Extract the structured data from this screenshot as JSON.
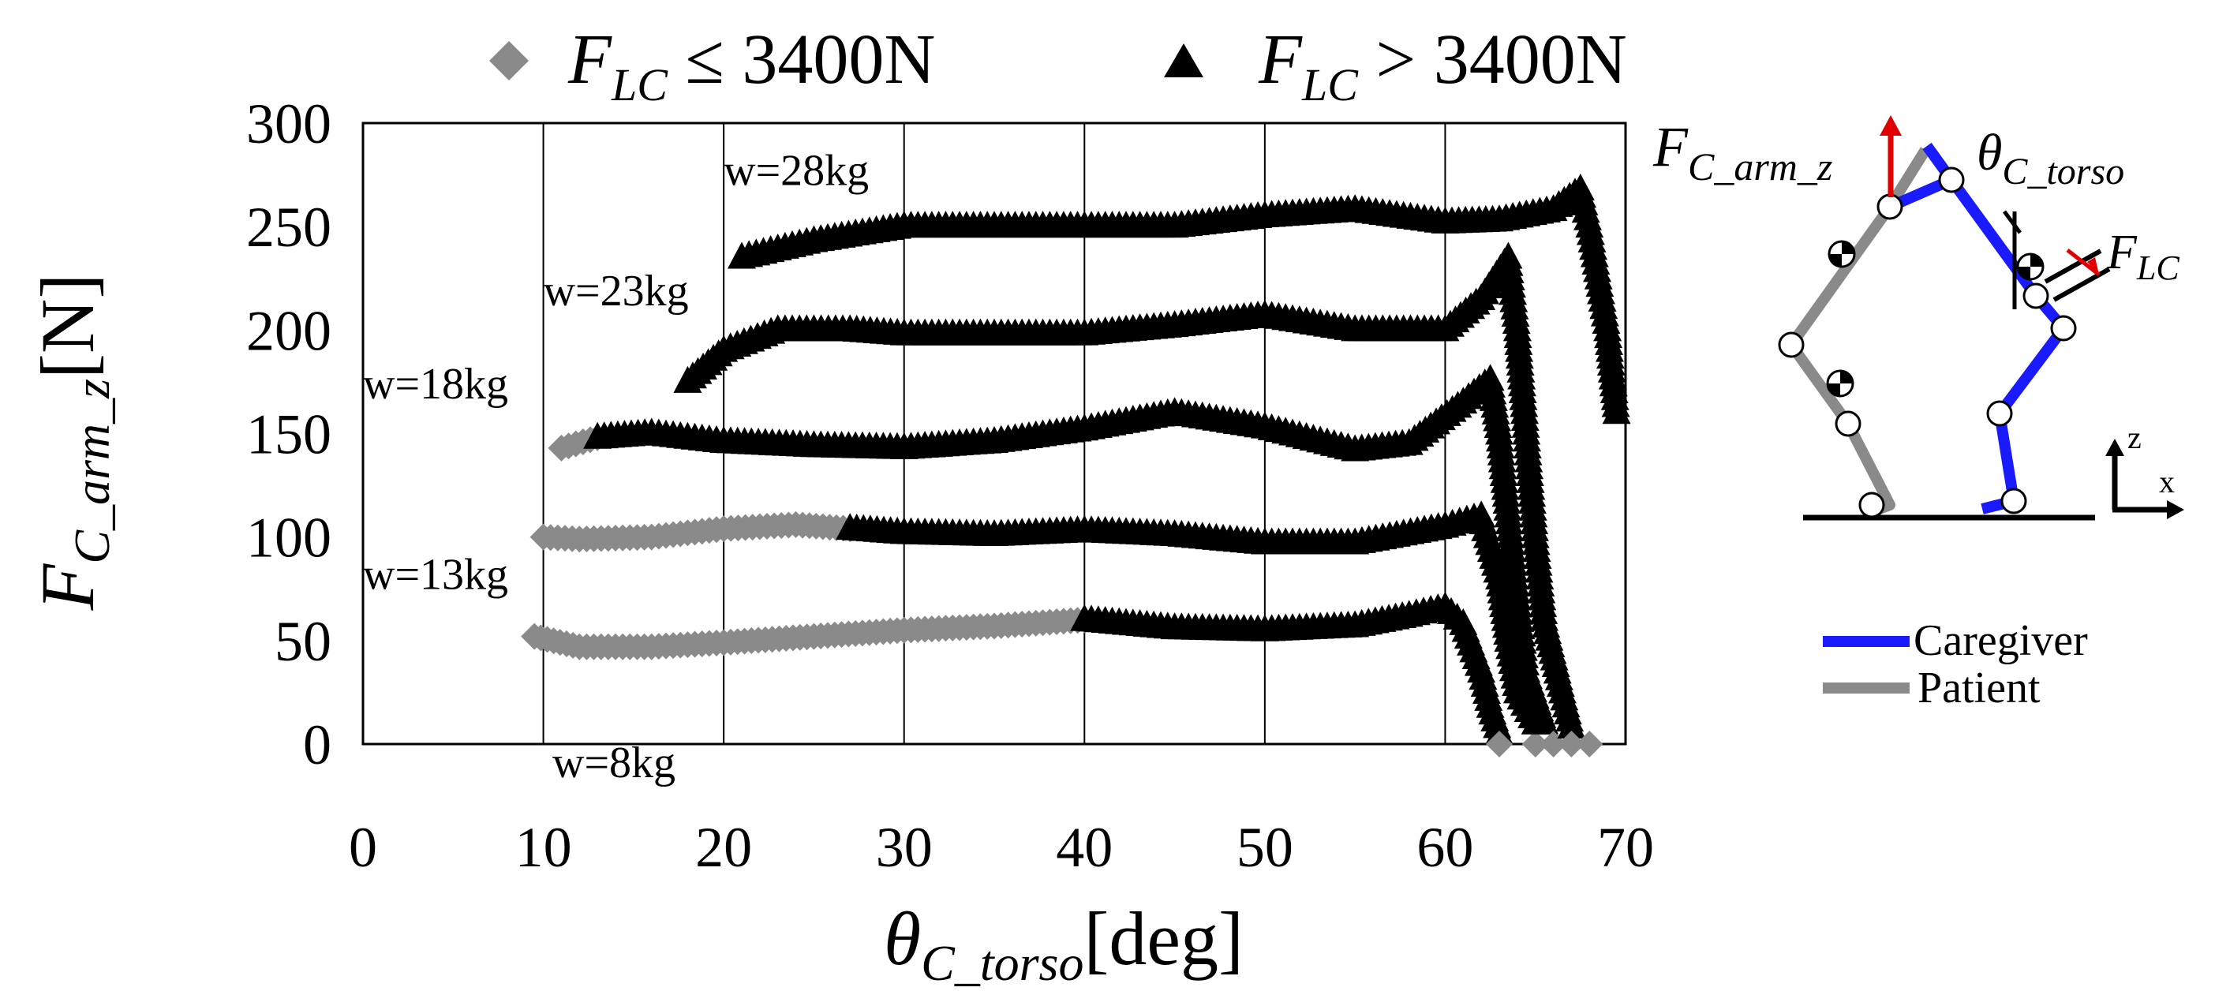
{
  "chart_data": {
    "type": "scatter",
    "xlabel": {
      "main": "θ",
      "sub": "C_torso",
      "unit": "[deg]"
    },
    "ylabel": {
      "main": "F",
      "sub": "C_arm_z",
      "unit": "[N]"
    },
    "xlim": [
      0,
      70
    ],
    "ylim": [
      0,
      300
    ],
    "x_ticks": [
      "0",
      "10",
      "20",
      "30",
      "40",
      "50",
      "60",
      "70"
    ],
    "y_ticks": [
      "0",
      "50",
      "100",
      "150",
      "200",
      "250",
      "300"
    ],
    "grid": "vertical",
    "legend": {
      "placement": "top",
      "entries": [
        {
          "marker": "diamond",
          "color": "#8a8a8a",
          "main": "F",
          "sub": "LC",
          "rel": " ≤ 3400N"
        },
        {
          "marker": "triangle",
          "color": "#000000",
          "main": "F",
          "sub": "LC",
          "rel": " > 3400N"
        }
      ]
    },
    "series": [
      {
        "name": "w=8kg",
        "label_at": [
          10.5,
          -16
        ],
        "gray": [
          [
            9.5,
            52
          ],
          [
            12,
            47
          ],
          [
            16,
            47
          ],
          [
            20,
            49
          ],
          [
            25,
            52
          ],
          [
            30,
            55
          ],
          [
            35,
            57
          ],
          [
            40,
            60
          ]
        ],
        "black": [
          [
            40,
            60
          ],
          [
            45,
            56
          ],
          [
            50,
            55
          ],
          [
            55,
            57
          ],
          [
            58,
            62
          ],
          [
            60,
            66
          ],
          [
            61,
            58
          ],
          [
            62,
            35
          ],
          [
            62.5,
            18
          ],
          [
            63,
            5
          ]
        ],
        "gray_end": [
          [
            63,
            0
          ]
        ]
      },
      {
        "name": "w=13kg",
        "label_at": [
          0,
          75
        ],
        "gray": [
          [
            10,
            100
          ],
          [
            12,
            99
          ],
          [
            16,
            100
          ],
          [
            20,
            104
          ],
          [
            24,
            106
          ],
          [
            27,
            104
          ]
        ],
        "black": [
          [
            27,
            104
          ],
          [
            30,
            102
          ],
          [
            35,
            101
          ],
          [
            40,
            103
          ],
          [
            45,
            101
          ],
          [
            50,
            97
          ],
          [
            55,
            97
          ],
          [
            60,
            105
          ],
          [
            62,
            110
          ],
          [
            63,
            80
          ],
          [
            63.5,
            50
          ],
          [
            64,
            25
          ],
          [
            65,
            10
          ]
        ],
        "gray_end": [
          [
            65,
            0
          ]
        ]
      },
      {
        "name": "w=18kg",
        "label_at": [
          0,
          167
        ],
        "gray": [
          [
            11,
            143
          ],
          [
            13,
            148
          ]
        ],
        "black": [
          [
            13,
            148
          ],
          [
            16,
            150
          ],
          [
            20,
            146
          ],
          [
            25,
            144
          ],
          [
            30,
            143
          ],
          [
            35,
            146
          ],
          [
            40,
            152
          ],
          [
            45,
            160
          ],
          [
            50,
            153
          ],
          [
            55,
            142
          ],
          [
            58,
            145
          ],
          [
            61,
            165
          ],
          [
            62.5,
            176
          ],
          [
            63,
            150
          ],
          [
            63.5,
            110
          ],
          [
            64,
            70
          ],
          [
            64.5,
            35
          ],
          [
            65.5,
            10
          ]
        ],
        "gray_end": [
          [
            66,
            0
          ]
        ]
      },
      {
        "name": "w=23kg",
        "label_at": [
          10,
          212
        ],
        "gray": [],
        "black": [
          [
            18,
            175
          ],
          [
            20,
            190
          ],
          [
            23,
            200
          ],
          [
            27,
            200
          ],
          [
            30,
            198
          ],
          [
            35,
            198
          ],
          [
            40,
            198
          ],
          [
            45,
            202
          ],
          [
            50,
            207
          ],
          [
            55,
            200
          ],
          [
            60,
            200
          ],
          [
            62,
            215
          ],
          [
            63.5,
            235
          ],
          [
            64,
            200
          ],
          [
            64.5,
            150
          ],
          [
            65,
            100
          ],
          [
            65.5,
            60
          ],
          [
            66.5,
            25
          ],
          [
            67,
            8
          ]
        ],
        "gray_end": [
          [
            67,
            0
          ]
        ]
      },
      {
        "name": "w=28kg",
        "label_at": [
          20,
          270
        ],
        "gray": [],
        "black": [
          [
            21,
            235
          ],
          [
            25,
            243
          ],
          [
            30,
            250
          ],
          [
            35,
            250
          ],
          [
            40,
            250
          ],
          [
            45,
            250
          ],
          [
            50,
            255
          ],
          [
            55,
            258
          ],
          [
            60,
            252
          ],
          [
            63,
            253
          ],
          [
            66,
            258
          ],
          [
            67.5,
            268
          ],
          [
            68,
            250
          ],
          [
            68.5,
            225
          ],
          [
            69,
            200
          ],
          [
            69.5,
            160
          ]
        ],
        "gray_end": [
          [
            68,
            0
          ]
        ]
      }
    ]
  },
  "diagram": {
    "labels": {
      "force_arm": {
        "main": "F",
        "sub": "C_arm_z"
      },
      "torso_angle": {
        "main": "θ",
        "sub": "C_torso"
      },
      "force_lc": {
        "main": "F",
        "sub": "LC"
      },
      "axis_z": "z",
      "axis_x": "x"
    },
    "legend": [
      {
        "label": "Caregiver",
        "color": "#1a1aff"
      },
      {
        "label": "Patient",
        "color": "#8a8a8a"
      }
    ]
  }
}
